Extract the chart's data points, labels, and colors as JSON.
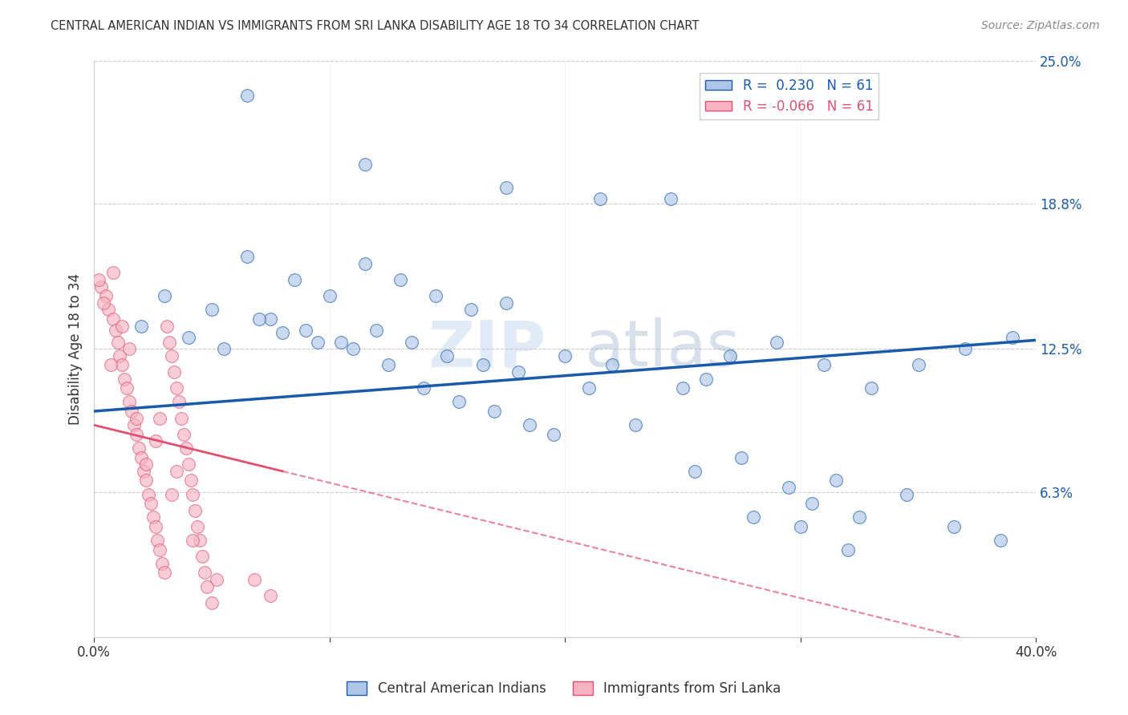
{
  "title": "CENTRAL AMERICAN INDIAN VS IMMIGRANTS FROM SRI LANKA DISABILITY AGE 18 TO 34 CORRELATION CHART",
  "source": "Source: ZipAtlas.com",
  "ylabel": "Disability Age 18 to 34",
  "xlim": [
    0.0,
    0.4
  ],
  "ylim": [
    0.0,
    0.25
  ],
  "r_blue": 0.23,
  "n_blue": 61,
  "r_pink": -0.066,
  "n_pink": 61,
  "legend_label_blue": "Central American Indians",
  "legend_label_pink": "Immigrants from Sri Lanka",
  "blue_color": "#aec6e8",
  "pink_color": "#f7b3c2",
  "blue_line_color": "#1a5aab",
  "pink_line_color": "#e05070",
  "watermark": "ZIPatlas",
  "blue_scatter_x": [
    0.065,
    0.115,
    0.175,
    0.215,
    0.245,
    0.065,
    0.085,
    0.1,
    0.115,
    0.13,
    0.145,
    0.16,
    0.175,
    0.02,
    0.04,
    0.055,
    0.075,
    0.09,
    0.105,
    0.12,
    0.135,
    0.15,
    0.165,
    0.18,
    0.2,
    0.22,
    0.25,
    0.27,
    0.29,
    0.31,
    0.33,
    0.35,
    0.37,
    0.39,
    0.295,
    0.315,
    0.255,
    0.275,
    0.305,
    0.325,
    0.345,
    0.365,
    0.385,
    0.03,
    0.05,
    0.07,
    0.08,
    0.095,
    0.11,
    0.125,
    0.14,
    0.155,
    0.17,
    0.185,
    0.195,
    0.21,
    0.23,
    0.26,
    0.28,
    0.3,
    0.32
  ],
  "blue_scatter_y": [
    0.235,
    0.205,
    0.195,
    0.19,
    0.19,
    0.165,
    0.155,
    0.148,
    0.162,
    0.155,
    0.148,
    0.142,
    0.145,
    0.135,
    0.13,
    0.125,
    0.138,
    0.133,
    0.128,
    0.133,
    0.128,
    0.122,
    0.118,
    0.115,
    0.122,
    0.118,
    0.108,
    0.122,
    0.128,
    0.118,
    0.108,
    0.118,
    0.125,
    0.13,
    0.065,
    0.068,
    0.072,
    0.078,
    0.058,
    0.052,
    0.062,
    0.048,
    0.042,
    0.148,
    0.142,
    0.138,
    0.132,
    0.128,
    0.125,
    0.118,
    0.108,
    0.102,
    0.098,
    0.092,
    0.088,
    0.108,
    0.092,
    0.112,
    0.052,
    0.048,
    0.038
  ],
  "pink_scatter_x": [
    0.003,
    0.005,
    0.006,
    0.008,
    0.009,
    0.01,
    0.011,
    0.012,
    0.013,
    0.014,
    0.015,
    0.016,
    0.017,
    0.018,
    0.019,
    0.02,
    0.021,
    0.022,
    0.023,
    0.024,
    0.025,
    0.026,
    0.027,
    0.028,
    0.029,
    0.03,
    0.031,
    0.032,
    0.033,
    0.034,
    0.035,
    0.036,
    0.037,
    0.038,
    0.039,
    0.04,
    0.041,
    0.042,
    0.043,
    0.044,
    0.045,
    0.046,
    0.047,
    0.048,
    0.05,
    0.004,
    0.007,
    0.026,
    0.052,
    0.002,
    0.015,
    0.028,
    0.035,
    0.042,
    0.018,
    0.022,
    0.033,
    0.008,
    0.012,
    0.068,
    0.075
  ],
  "pink_scatter_y": [
    0.152,
    0.148,
    0.142,
    0.138,
    0.133,
    0.128,
    0.122,
    0.118,
    0.112,
    0.108,
    0.102,
    0.098,
    0.092,
    0.088,
    0.082,
    0.078,
    0.072,
    0.068,
    0.062,
    0.058,
    0.052,
    0.048,
    0.042,
    0.038,
    0.032,
    0.028,
    0.135,
    0.128,
    0.122,
    0.115,
    0.108,
    0.102,
    0.095,
    0.088,
    0.082,
    0.075,
    0.068,
    0.062,
    0.055,
    0.048,
    0.042,
    0.035,
    0.028,
    0.022,
    0.015,
    0.145,
    0.118,
    0.085,
    0.025,
    0.155,
    0.125,
    0.095,
    0.072,
    0.042,
    0.095,
    0.075,
    0.062,
    0.158,
    0.135,
    0.025,
    0.018
  ]
}
